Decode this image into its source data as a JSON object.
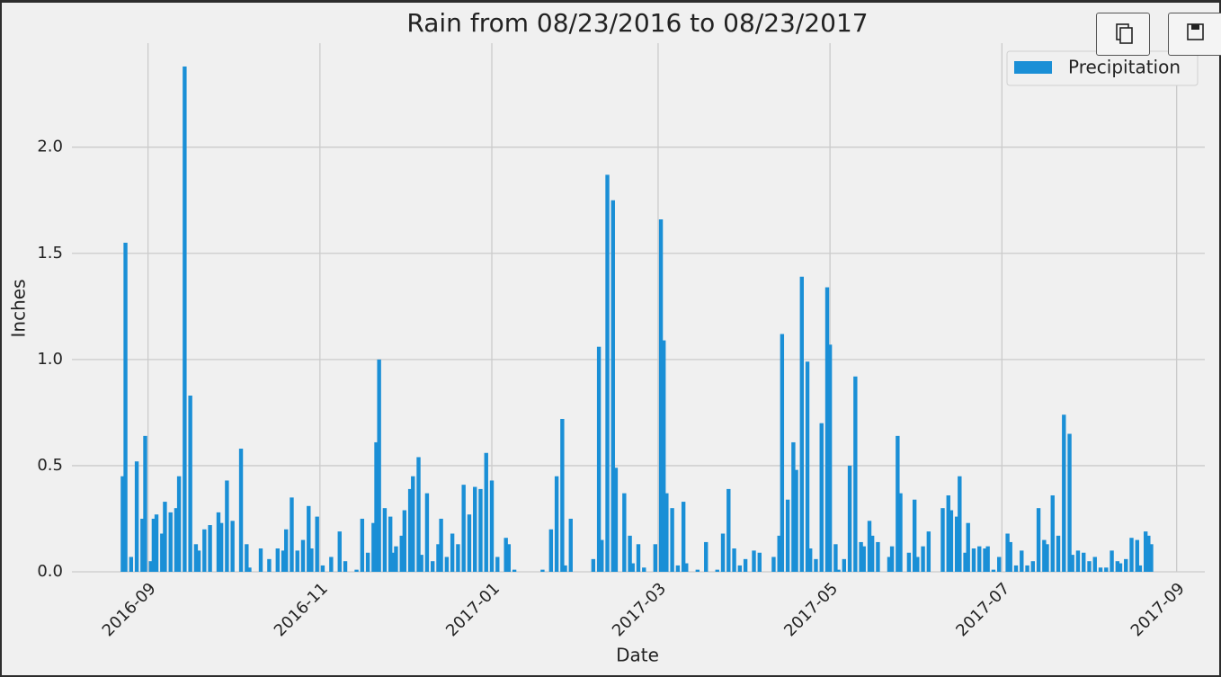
{
  "chart_data": {
    "type": "bar",
    "title": "Rain from 08/23/2016 to 08/23/2017",
    "xlabel": "Date",
    "ylabel": "Inches",
    "legend": "upper right",
    "grid": true,
    "xlim": [
      "2016-08-05",
      "2017-09-11"
    ],
    "xticks": [
      "2016-09",
      "2016-11",
      "2017-01",
      "2017-03",
      "2017-05",
      "2017-07",
      "2017-09"
    ],
    "ylim": [
      0,
      2.49
    ],
    "yticks": [
      {
        "value": 0,
        "label": "0.0"
      },
      0.5,
      {
        "value": 1,
        "label": "1.0"
      },
      1.5,
      {
        "value": 2,
        "label": "2.0"
      }
    ],
    "x": [
      "2016-08-23",
      "2016-08-24",
      "2016-08-26",
      "2016-08-28",
      "2016-08-30",
      "2016-08-31",
      "2016-09-02",
      "2016-09-03",
      "2016-09-04",
      "2016-09-06",
      "2016-09-07",
      "2016-09-09",
      "2016-09-11",
      "2016-09-12",
      "2016-09-14",
      "2016-09-16",
      "2016-09-18",
      "2016-09-19",
      "2016-09-21",
      "2016-09-23",
      "2016-09-26",
      "2016-09-27",
      "2016-09-29",
      "2016-10-01",
      "2016-10-04",
      "2016-10-06",
      "2016-10-07",
      "2016-10-11",
      "2016-10-14",
      "2016-10-17",
      "2016-10-19",
      "2016-10-20",
      "2016-10-22",
      "2016-10-24",
      "2016-10-26",
      "2016-10-28",
      "2016-10-29",
      "2016-10-31",
      "2016-11-02",
      "2016-11-05",
      "2016-11-08",
      "2016-11-10",
      "2016-11-14",
      "2016-11-16",
      "2016-11-18",
      "2016-11-20",
      "2016-11-21",
      "2016-11-22",
      "2016-11-24",
      "2016-11-26",
      "2016-11-27",
      "2016-11-28",
      "2016-11-30",
      "2016-12-01",
      "2016-12-03",
      "2016-12-04",
      "2016-12-06",
      "2016-12-07",
      "2016-12-09",
      "2016-12-11",
      "2016-12-13",
      "2016-12-14",
      "2016-12-16",
      "2016-12-18",
      "2016-12-20",
      "2016-12-22",
      "2016-12-24",
      "2016-12-26",
      "2016-12-28",
      "2016-12-30",
      "2017-01-01",
      "2017-01-03",
      "2017-01-06",
      "2017-01-07",
      "2017-01-09",
      "2017-01-19",
      "2017-01-22",
      "2017-01-24",
      "2017-01-26",
      "2017-01-27",
      "2017-01-29",
      "2017-02-06",
      "2017-02-08",
      "2017-02-09",
      "2017-02-11",
      "2017-02-13",
      "2017-02-14",
      "2017-02-17",
      "2017-02-19",
      "2017-02-20",
      "2017-02-22",
      "2017-02-24",
      "2017-02-28",
      "2017-03-02",
      "2017-03-03",
      "2017-03-04",
      "2017-03-06",
      "2017-03-08",
      "2017-03-10",
      "2017-03-11",
      "2017-03-15",
      "2017-03-18",
      "2017-03-22",
      "2017-03-24",
      "2017-03-26",
      "2017-03-28",
      "2017-03-30",
      "2017-04-01",
      "2017-04-04",
      "2017-04-06",
      "2017-04-11",
      "2017-04-13",
      "2017-04-14",
      "2017-04-16",
      "2017-04-18",
      "2017-04-19",
      "2017-04-21",
      "2017-04-23",
      "2017-04-24",
      "2017-04-26",
      "2017-04-28",
      "2017-04-30",
      "2017-05-01",
      "2017-05-03",
      "2017-05-04",
      "2017-05-06",
      "2017-05-08",
      "2017-05-10",
      "2017-05-12",
      "2017-05-13",
      "2017-05-15",
      "2017-05-16",
      "2017-05-18",
      "2017-05-22",
      "2017-05-23",
      "2017-05-25",
      "2017-05-26",
      "2017-05-29",
      "2017-05-31",
      "2017-06-01",
      "2017-06-03",
      "2017-06-05",
      "2017-06-10",
      "2017-06-12",
      "2017-06-13",
      "2017-06-15",
      "2017-06-16",
      "2017-06-18",
      "2017-06-19",
      "2017-06-21",
      "2017-06-23",
      "2017-06-25",
      "2017-06-26",
      "2017-06-28",
      "2017-06-30",
      "2017-07-03",
      "2017-07-04",
      "2017-07-06",
      "2017-07-08",
      "2017-07-10",
      "2017-07-12",
      "2017-07-14",
      "2017-07-16",
      "2017-07-17",
      "2017-07-19",
      "2017-07-21",
      "2017-07-23",
      "2017-07-25",
      "2017-07-26",
      "2017-07-28",
      "2017-07-30",
      "2017-08-01",
      "2017-08-03",
      "2017-08-05",
      "2017-08-07",
      "2017-08-09",
      "2017-08-11",
      "2017-08-12",
      "2017-08-14",
      "2017-08-16",
      "2017-08-18",
      "2017-08-19",
      "2017-08-21",
      "2017-08-22",
      "2017-08-23"
    ],
    "series": [
      {
        "name": "Precipitation",
        "color": "#1a8fd6",
        "values": [
          0.45,
          1.55,
          0.07,
          0.52,
          0.25,
          0.64,
          0.05,
          0.25,
          0.27,
          0.18,
          0.33,
          0.28,
          0.3,
          0.45,
          2.38,
          0.83,
          0.13,
          0.1,
          0.2,
          0.22,
          0.28,
          0.23,
          0.43,
          0.24,
          0.58,
          0.13,
          0.02,
          0.11,
          0.06,
          0.11,
          0.1,
          0.2,
          0.35,
          0.1,
          0.15,
          0.31,
          0.11,
          0.26,
          0.03,
          0.07,
          0.19,
          0.05,
          0.01,
          0.25,
          0.09,
          0.23,
          0.61,
          1.0,
          0.3,
          0.26,
          0.09,
          0.12,
          0.17,
          0.29,
          0.39,
          0.45,
          0.54,
          0.08,
          0.37,
          0.05,
          0.13,
          0.25,
          0.07,
          0.18,
          0.13,
          0.41,
          0.27,
          0.4,
          0.39,
          0.56,
          0.43,
          0.07,
          0.16,
          0.13,
          0.01,
          0.01,
          0.2,
          0.45,
          0.72,
          0.03,
          0.25,
          0.06,
          1.06,
          0.15,
          1.87,
          1.75,
          0.49,
          0.37,
          0.17,
          0.04,
          0.13,
          0.02,
          0.13,
          1.66,
          1.09,
          0.37,
          0.3,
          0.03,
          0.33,
          0.04,
          0.01,
          0.14,
          0.01,
          0.18,
          0.39,
          0.11,
          0.03,
          0.06,
          0.1,
          0.09,
          0.07,
          0.17,
          1.12,
          0.34,
          0.61,
          0.48,
          1.39,
          0.99,
          0.11,
          0.06,
          0.7,
          1.34,
          1.07,
          0.13,
          0.01,
          0.06,
          0.5,
          0.92,
          0.14,
          0.12,
          0.24,
          0.17,
          0.14,
          0.07,
          0.12,
          0.64,
          0.37,
          0.09,
          0.34,
          0.07,
          0.12,
          0.19,
          0.3,
          0.36,
          0.29,
          0.26,
          0.45,
          0.09,
          0.23,
          0.11,
          0.12,
          0.11,
          0.12,
          0.01,
          0.07,
          0.18,
          0.14,
          0.03,
          0.1,
          0.03,
          0.05,
          0.3,
          0.15,
          0.13,
          0.36,
          0.17,
          0.74,
          0.65,
          0.08,
          0.1,
          0.09,
          0.05,
          0.07,
          0.02,
          0.02,
          0.1,
          0.05,
          0.04,
          0.06,
          0.16,
          0.15,
          0.03,
          0.19,
          0.17,
          0.13
        ]
      }
    ]
  }
}
